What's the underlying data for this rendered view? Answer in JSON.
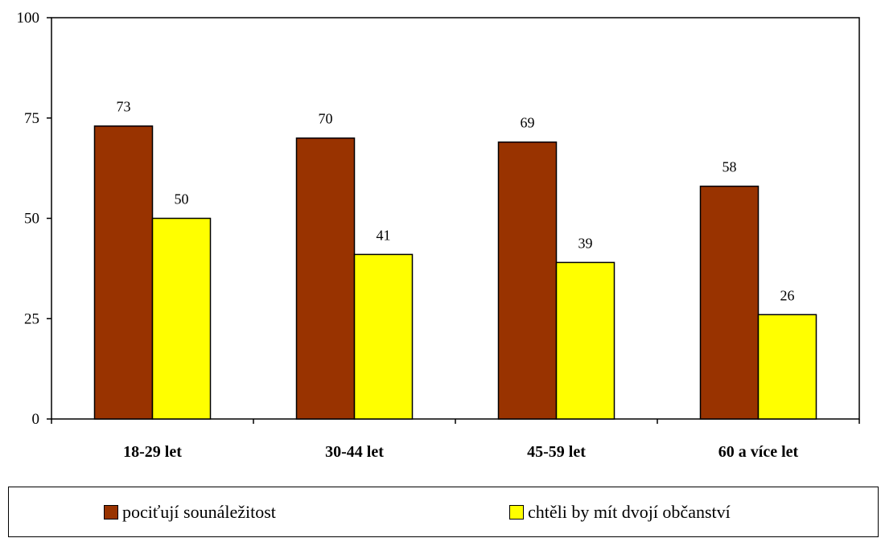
{
  "chart_data": {
    "type": "bar",
    "categories": [
      "18-29 let",
      "30-44 let",
      "45-59 let",
      "60 a více let"
    ],
    "series": [
      {
        "name": "pociťují sounáležitost",
        "values": [
          73,
          70,
          69,
          58
        ],
        "color": "#993300"
      },
      {
        "name": "chtěli by mít dvojí občanství",
        "values": [
          50,
          41,
          39,
          26
        ],
        "color": "#ffff00"
      }
    ],
    "ylim": [
      0,
      100
    ],
    "yticks": [
      0,
      25,
      50,
      75,
      100
    ],
    "grid": false,
    "legend_position": "bottom"
  }
}
